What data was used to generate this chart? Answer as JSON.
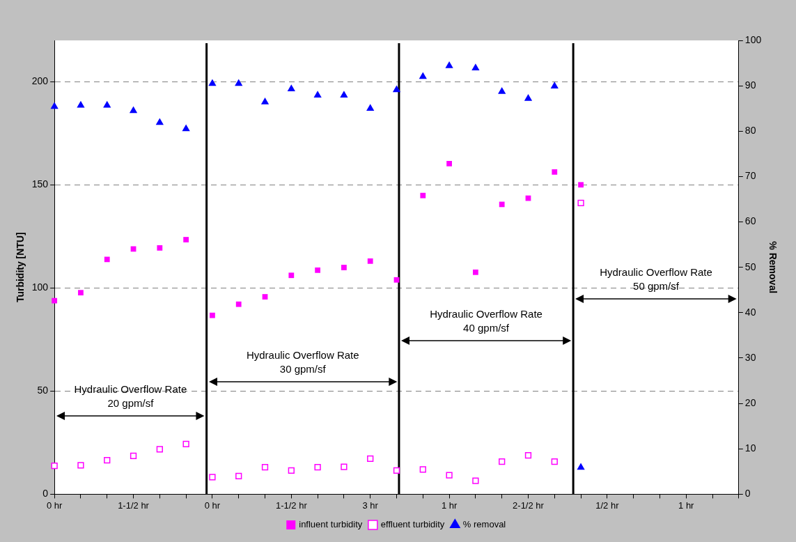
{
  "chart_data": {
    "type": "scatter",
    "ylabel": "Turbidity [NTU]",
    "y2label": "% Removal",
    "categories": [
      "0 hr",
      null,
      null,
      "1-1/2 hr",
      null,
      null,
      "0 hr",
      null,
      null,
      "1-1/2 hr",
      null,
      null,
      "3 hr",
      null,
      null,
      "1 hr",
      null,
      null,
      "2-1/2 hr",
      null,
      null,
      "1/2 hr",
      null,
      null,
      "1 hr",
      null,
      null
    ],
    "series": [
      {
        "name": "influent turbidity",
        "color": "#ff00ff",
        "marker": "square",
        "values": [
          93.8,
          97.7,
          113.8,
          118.9,
          119.4,
          123.4,
          86.7,
          92.1,
          95.7,
          106.1,
          108.6,
          109.9,
          113,
          103.9,
          144.8,
          160.3,
          107.6,
          140.5,
          143.5,
          156.2,
          150,
          null,
          null,
          null,
          null,
          null,
          null
        ]
      },
      {
        "name": "effluent turbidity",
        "color": "#ff00ff",
        "marker": "square-open",
        "values": [
          13.8,
          14,
          16.5,
          18.6,
          21.8,
          24.3,
          8.3,
          8.8,
          13.1,
          11.5,
          13.1,
          13.3,
          17.2,
          11.5,
          12,
          9.2,
          6.5,
          15.8,
          18.8,
          15.8,
          141.2,
          null,
          null,
          null,
          null,
          null,
          null
        ]
      },
      {
        "name": "% removal",
        "color": "#0000ff",
        "marker": "triangle",
        "axis": "y2",
        "values": [
          85.4,
          85.7,
          85.7,
          84.5,
          81.9,
          80.5,
          90.5,
          90.5,
          86.4,
          89.3,
          87.9,
          87.9,
          85,
          89.1,
          92,
          94.4,
          93.9,
          88.7,
          87.2,
          89.9,
          5.9,
          null,
          null,
          null,
          null,
          null,
          null
        ]
      }
    ],
    "ylim": [
      0,
      220
    ],
    "yticks": [
      0,
      50,
      100,
      150,
      200
    ],
    "y2lim": [
      0,
      100
    ],
    "y2ticks": [
      0,
      10,
      20,
      30,
      40,
      50,
      60,
      70,
      80,
      90,
      100
    ],
    "grid": "y",
    "legend": "bottom",
    "annotations": [
      "Hydraulic Overflow Rate\n20 gpm/sf",
      "Hydraulic Overflow Rate\n30 gpm/sf",
      "Hydraulic Overflow Rate\n40 gpm/sf",
      "Hydraulic Overflow Rate\n50 gpm/sf"
    ]
  }
}
